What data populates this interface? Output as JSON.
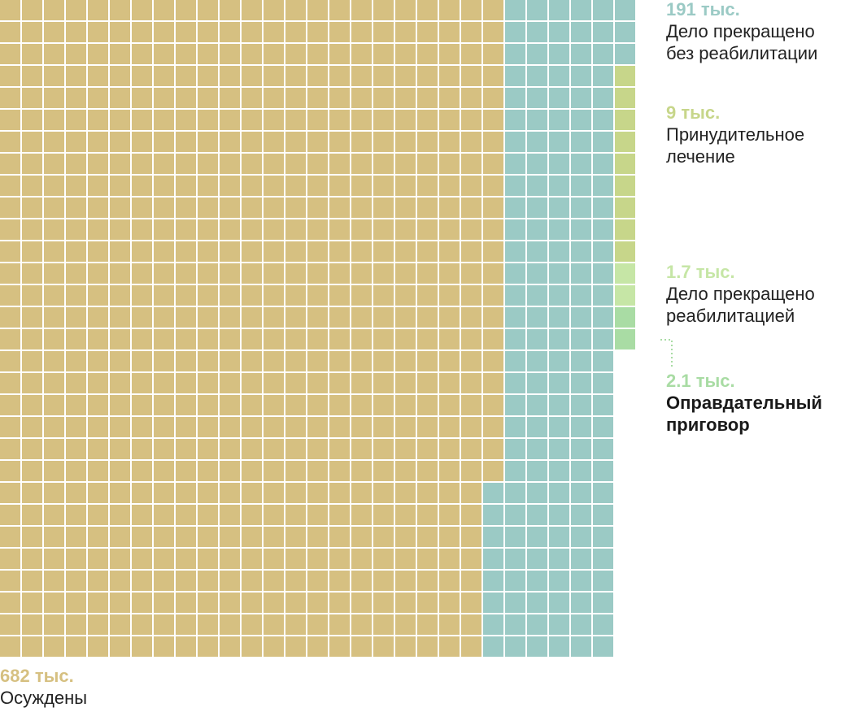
{
  "chart_data": {
    "type": "waffle",
    "title": "",
    "grid": {
      "rows": 30,
      "cols": 29
    },
    "series": [
      {
        "name": "Осуждены",
        "value_label": "682 тыс.",
        "value_thousands": 682,
        "color": "#d6c081"
      },
      {
        "name": "Дело прекращено без реабилитации",
        "value_label": "191 тыс.",
        "value_thousands": 191,
        "color": "#9bcac5"
      },
      {
        "name": "Принудительное лечение",
        "value_label": "9 тыс.",
        "value_thousands": 9,
        "color": "#c7d68a"
      },
      {
        "name": "Дело прекращено реабилитацией",
        "value_label": "1.7 тыс.",
        "value_thousands": 1.7,
        "color": "#c6e6a6"
      },
      {
        "name": "Оправдательный приговор",
        "value_label": "2.1 тыс.",
        "value_thousands": 2.1,
        "color": "#a9dca4"
      }
    ]
  },
  "labels": {
    "no_rehab": {
      "value": "191 тыс.",
      "line1": "Дело прекращено",
      "line2": "без реабилитации"
    },
    "treatment": {
      "value": "9 тыс.",
      "line1": "Принудительное",
      "line2": "лечение"
    },
    "rehab": {
      "value": "1.7 тыс.",
      "line1": "Дело прекращено",
      "line2": "реабилитацией"
    },
    "acquittal": {
      "value": "2.1 тыс.",
      "line1": "Оправдательный",
      "line2": "приговор"
    },
    "convicted": {
      "value": "682 тыс.",
      "line1": "Осуждены"
    }
  },
  "colors": {
    "convicted": "#d6c081",
    "no_rehab": "#9bcac5",
    "treatment": "#c7d68a",
    "rehab": "#c6e6a6",
    "acquittal": "#a9dca4",
    "treatment_text": "#c7d68a",
    "rehab_text": "#c6e6a6",
    "acquittal_text": "#a9dca4"
  }
}
